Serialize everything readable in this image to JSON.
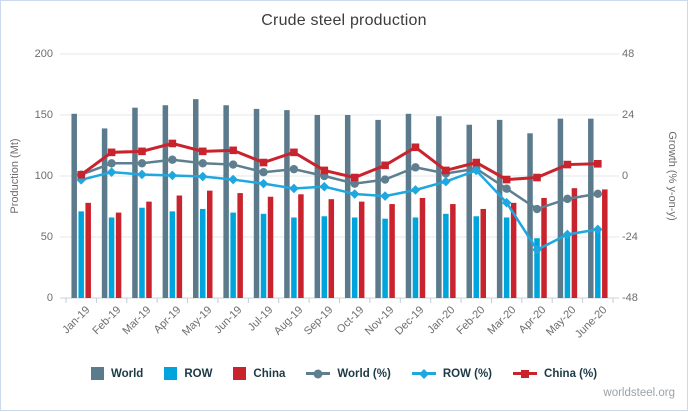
{
  "branding": {
    "label": "worldsteel.org"
  },
  "chart_data": {
    "type": "bar+line",
    "title": "Crude steel production",
    "left_axis": {
      "label": "Production (Mt)",
      "ticks": [
        0,
        50,
        100,
        150,
        200
      ],
      "lim": [
        0,
        200
      ]
    },
    "right_axis": {
      "label": "Growth (% y-on-y)",
      "ticks": [
        -48,
        -24,
        0,
        24,
        48
      ],
      "lim": [
        -48,
        48
      ]
    },
    "categories": [
      "Jan-19",
      "Feb-19",
      "Mar-19",
      "Apr-19",
      "May-19",
      "Jun-19",
      "Jul-19",
      "Aug-19",
      "Sep-19",
      "Oct-19",
      "Nov-19",
      "Dec-19",
      "Jan-20",
      "Feb-20",
      "Mar-20",
      "Apr-20",
      "May-20",
      "June-20"
    ],
    "bar_series": [
      {
        "name": "World",
        "slug": "world",
        "color": "#5b7b8d",
        "values": [
          151,
          139,
          156,
          158,
          163,
          158,
          155,
          154,
          150,
          150,
          146,
          151,
          149,
          142,
          146,
          135,
          147,
          147
        ]
      },
      {
        "name": "ROW",
        "slug": "row",
        "color": "#00a4dc",
        "values": [
          71,
          66,
          74,
          71,
          73,
          70,
          69,
          66,
          67,
          66,
          65,
          66,
          69,
          67,
          66,
          49,
          53,
          57
        ]
      },
      {
        "name": "China",
        "slug": "china",
        "color": "#c9232d",
        "values": [
          78,
          70,
          79,
          84,
          88,
          86,
          83,
          85,
          81,
          79,
          77,
          82,
          77,
          73,
          78,
          82,
          90,
          89
        ]
      }
    ],
    "line_series": [
      {
        "name": "World (%)",
        "slug": "world-pct",
        "color": "#5f7f90",
        "marker": "circle",
        "values": [
          0.5,
          5,
          5,
          6.4,
          5,
          4.5,
          1.5,
          2.7,
          0,
          -3,
          -1.4,
          3.4,
          1,
          2.9,
          -5,
          -13,
          -9,
          -7
        ]
      },
      {
        "name": "ROW (%)",
        "slug": "row-pct",
        "color": "#1fa8e0",
        "marker": "diamond",
        "values": [
          -1.5,
          1.5,
          0.6,
          0.2,
          -0.2,
          -1.4,
          -3,
          -4.9,
          -4.2,
          -7.1,
          -7.9,
          -5.5,
          -2.2,
          2.2,
          -10.5,
          -29,
          -23,
          -21
        ]
      },
      {
        "name": "China (%)",
        "slug": "china-pct",
        "color": "#c9232d",
        "marker": "square",
        "values": [
          0.5,
          9.3,
          9.7,
          12.8,
          9.7,
          10.1,
          5.3,
          9.3,
          2.2,
          -0.6,
          4.2,
          11.3,
          2.2,
          5.3,
          -1.4,
          -0.6,
          4.5,
          4.8
        ]
      }
    ],
    "grid": true,
    "legend_position": "bottom"
  }
}
